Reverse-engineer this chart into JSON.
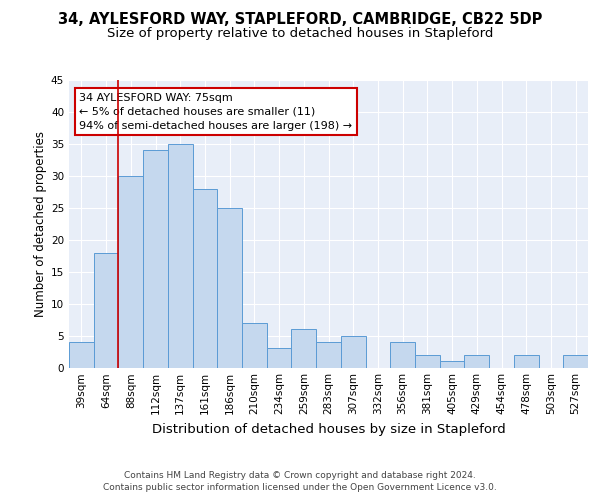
{
  "title": "34, AYLESFORD WAY, STAPLEFORD, CAMBRIDGE, CB22 5DP",
  "subtitle": "Size of property relative to detached houses in Stapleford",
  "xlabel": "Distribution of detached houses by size in Stapleford",
  "ylabel": "Number of detached properties",
  "categories": [
    "39sqm",
    "64sqm",
    "88sqm",
    "112sqm",
    "137sqm",
    "161sqm",
    "186sqm",
    "210sqm",
    "234sqm",
    "259sqm",
    "283sqm",
    "307sqm",
    "332sqm",
    "356sqm",
    "381sqm",
    "405sqm",
    "429sqm",
    "454sqm",
    "478sqm",
    "503sqm",
    "527sqm"
  ],
  "values": [
    4,
    18,
    30,
    34,
    35,
    28,
    25,
    7,
    3,
    6,
    4,
    5,
    0,
    4,
    2,
    1,
    2,
    0,
    2,
    0,
    2
  ],
  "bar_color": "#c5d8ee",
  "bar_edge_color": "#5b9bd5",
  "vline_color": "#cc0000",
  "vline_x_index": 1.5,
  "annotation_text_line1": "34 AYLESFORD WAY: 75sqm",
  "annotation_text_line2": "← 5% of detached houses are smaller (11)",
  "annotation_text_line3": "94% of semi-detached houses are larger (198) →",
  "annotation_box_color": "white",
  "annotation_box_edge_color": "#cc0000",
  "ylim": [
    0,
    45
  ],
  "yticks": [
    0,
    5,
    10,
    15,
    20,
    25,
    30,
    35,
    40,
    45
  ],
  "bg_color": "#e8eef8",
  "grid_color": "white",
  "footer_line1": "Contains HM Land Registry data © Crown copyright and database right 2024.",
  "footer_line2": "Contains public sector information licensed under the Open Government Licence v3.0.",
  "title_fontsize": 10.5,
  "subtitle_fontsize": 9.5,
  "ylabel_fontsize": 8.5,
  "xlabel_fontsize": 9.5,
  "tick_fontsize": 7.5,
  "annot_fontsize": 8,
  "footer_fontsize": 6.5
}
